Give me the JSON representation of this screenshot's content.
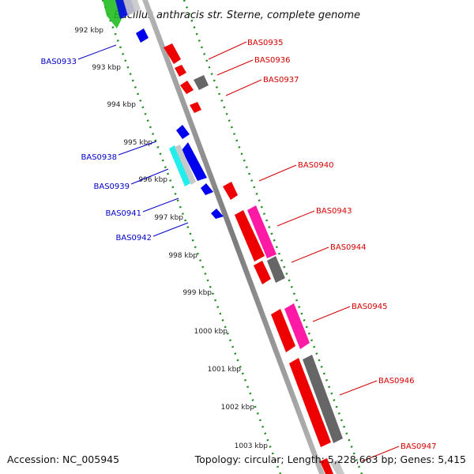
{
  "title": "Bacillus anthracis str. Sterne, complete genome",
  "footer": {
    "accession": "Accession: NC_005945",
    "topology": "Topology: circular; Length: 5,228,663 bp; Genes: 5,415"
  },
  "ticks": [
    "992 kbp",
    "993 kbp",
    "994 kbp",
    "995 kbp",
    "996 kbp",
    "997 kbp",
    "998 kbp",
    "999 kbp",
    "1000 kbp",
    "1001 kbp",
    "1002 kbp",
    "1003 kbp"
  ],
  "genes_forward": [
    "BAS0935",
    "BAS0936",
    "BAS0937",
    "BAS0940",
    "BAS0943",
    "BAS0944",
    "BAS0945",
    "BAS0946",
    "BAS0947"
  ],
  "genes_reverse": [
    "BAS0933",
    "BAS0938",
    "BAS0939",
    "BAS0941",
    "BAS0942"
  ],
  "colors": {
    "backbone": "#8c8c8c",
    "ticks": "#1f8a1f",
    "forward_cds": "#ee0000",
    "reverse_cds": "#0000ee",
    "pink": "#ff1aa6",
    "gray": "#666666",
    "cyan": "#22eeee",
    "green": "#22bb22",
    "label_red": "#d40000",
    "label_blue": "#0000c8"
  }
}
